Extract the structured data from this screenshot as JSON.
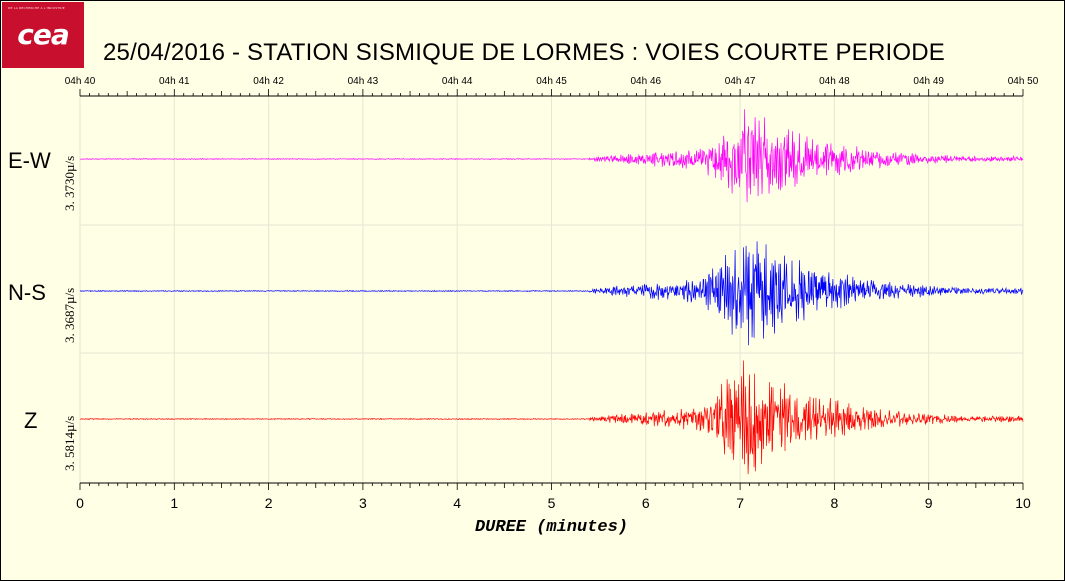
{
  "logo": {
    "text": "cea",
    "tagline": "DE LA RECHERCHE À L'INDUSTRIE"
  },
  "chart_data": {
    "type": "line",
    "title": "25/04/2016  -  STATION SISMIQUE DE LORMES : VOIES COURTE PERIODE",
    "xlabel": "DUREE (minutes)",
    "x_range": [
      0,
      10
    ],
    "x_ticks": [
      "0",
      "1",
      "2",
      "3",
      "4",
      "5",
      "6",
      "7",
      "8",
      "9",
      "10"
    ],
    "top_axis_ticks": [
      "04h 40",
      "04h 41",
      "04h 42",
      "04h 43",
      "04h 44",
      "04h 45",
      "04h 46",
      "04h 47",
      "04h 48",
      "04h 49",
      "04h 50"
    ],
    "grid": true,
    "series": [
      {
        "name": "E-W",
        "scale_label": "3. 3730µ/s",
        "color": "#ff00ff",
        "onset_min": 5.4,
        "peak_min": 7.05,
        "peak_rel": 1.0,
        "noise_rel": 0.02
      },
      {
        "name": "N-S",
        "scale_label": "3. 3687µ/s",
        "color": "#0000ff",
        "onset_min": 5.4,
        "peak_min": 7.05,
        "peak_rel": 1.0,
        "noise_rel": 0.02
      },
      {
        "name": "Z",
        "scale_label": "3. 5814µ/s",
        "color": "#ff0000",
        "onset_min": 5.4,
        "peak_min": 7.05,
        "peak_rel": 1.0,
        "noise_rel": 0.02
      }
    ]
  }
}
